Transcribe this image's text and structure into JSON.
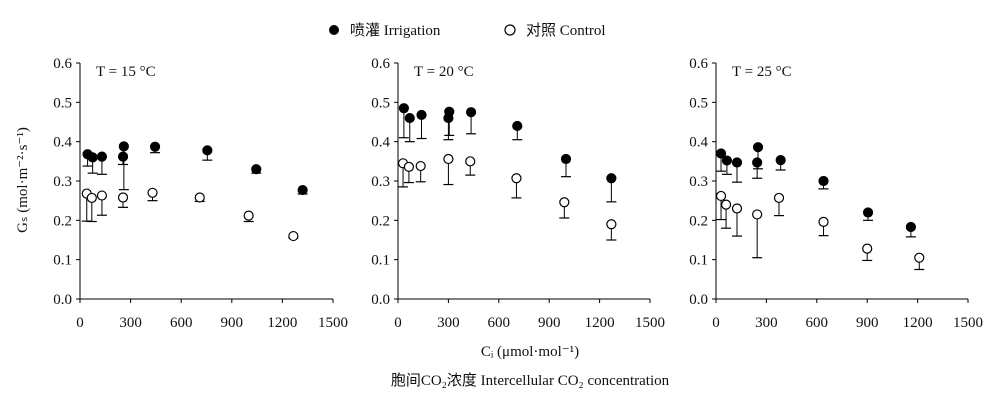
{
  "legend": {
    "irrigation": "喷灌 Irrigation",
    "control": "对照 Control"
  },
  "axes": {
    "ylabel": "Gₛ (mol·m⁻²·s⁻¹)",
    "xlabel": "Cᵢ (μmol·mol⁻¹)",
    "xlabel_bottom": "胞间CO₂浓度 Intercellular CO₂ concentration"
  },
  "chart_data": [
    {
      "type": "scatter",
      "title": "T = 15 °C",
      "xlabel": "Cᵢ (μmol·mol⁻¹)",
      "ylabel": "Gₛ (mol·m⁻²·s⁻¹)",
      "xlim": [
        0,
        1500
      ],
      "ylim": [
        0,
        0.6
      ],
      "xticks": [
        0,
        300,
        600,
        900,
        1200,
        1500
      ],
      "yticks": [
        0.0,
        0.1,
        0.2,
        0.3,
        0.4,
        0.5,
        0.6
      ],
      "series": [
        {
          "name": "喷灌 Irrigation",
          "marker": "filled-circle",
          "points": [
            {
              "x": 45,
              "y": 0.368,
              "err": 0.03
            },
            {
              "x": 75,
              "y": 0.36,
              "err": 0.04
            },
            {
              "x": 130,
              "y": 0.362,
              "err": 0.045
            },
            {
              "x": 260,
              "y": 0.388,
              "err": 0.11
            },
            {
              "x": 255,
              "y": 0.362,
              "err": 0.02
            },
            {
              "x": 445,
              "y": 0.387,
              "err": 0.015
            },
            {
              "x": 755,
              "y": 0.378,
              "err": 0.025
            },
            {
              "x": 1045,
              "y": 0.33,
              "err": 0.01
            },
            {
              "x": 1320,
              "y": 0.277,
              "err": 0.01
            }
          ]
        },
        {
          "name": "对照 Control",
          "marker": "open-circle",
          "points": [
            {
              "x": 40,
              "y": 0.268,
              "err": 0.07
            },
            {
              "x": 70,
              "y": 0.257,
              "err": 0.06
            },
            {
              "x": 130,
              "y": 0.263,
              "err": 0.05
            },
            {
              "x": 255,
              "y": 0.258,
              "err": 0.025
            },
            {
              "x": 430,
              "y": 0.27,
              "err": 0.02
            },
            {
              "x": 710,
              "y": 0.258,
              "err": 0.01
            },
            {
              "x": 1000,
              "y": 0.212,
              "err": 0.015
            },
            {
              "x": 1265,
              "y": 0.16,
              "err": 0.005
            }
          ]
        }
      ]
    },
    {
      "type": "scatter",
      "title": "T = 20 °C",
      "xlabel": "Cᵢ (μmol·mol⁻¹)",
      "ylabel": "Gₛ (mol·m⁻²·s⁻¹)",
      "xlim": [
        0,
        1500
      ],
      "ylim": [
        0,
        0.6
      ],
      "xticks": [
        0,
        300,
        600,
        900,
        1200,
        1500
      ],
      "yticks": [
        0.0,
        0.1,
        0.2,
        0.3,
        0.4,
        0.5,
        0.6
      ],
      "series": [
        {
          "name": "喷灌 Irrigation",
          "marker": "filled-circle",
          "points": [
            {
              "x": 35,
              "y": 0.485,
              "err": 0.075
            },
            {
              "x": 70,
              "y": 0.46,
              "err": 0.06
            },
            {
              "x": 140,
              "y": 0.468,
              "err": 0.06
            },
            {
              "x": 305,
              "y": 0.476,
              "err": 0.06
            },
            {
              "x": 300,
              "y": 0.46,
              "err": 0.055
            },
            {
              "x": 435,
              "y": 0.475,
              "err": 0.055
            },
            {
              "x": 710,
              "y": 0.44,
              "err": 0.035
            },
            {
              "x": 1000,
              "y": 0.356,
              "err": 0.045
            },
            {
              "x": 1270,
              "y": 0.307,
              "err": 0.06
            }
          ]
        },
        {
          "name": "对照 Control",
          "marker": "open-circle",
          "points": [
            {
              "x": 30,
              "y": 0.345,
              "err": 0.06
            },
            {
              "x": 65,
              "y": 0.336,
              "err": 0.04
            },
            {
              "x": 135,
              "y": 0.338,
              "err": 0.04
            },
            {
              "x": 300,
              "y": 0.356,
              "err": 0.065
            },
            {
              "x": 430,
              "y": 0.35,
              "err": 0.035
            },
            {
              "x": 705,
              "y": 0.307,
              "err": 0.05
            },
            {
              "x": 990,
              "y": 0.246,
              "err": 0.04
            },
            {
              "x": 1270,
              "y": 0.19,
              "err": 0.04
            }
          ]
        }
      ]
    },
    {
      "type": "scatter",
      "title": "T = 25 °C",
      "xlabel": "Cᵢ (μmol·mol⁻¹)",
      "ylabel": "Gₛ (mol·m⁻²·s⁻¹)",
      "xlim": [
        0,
        1500
      ],
      "ylim": [
        0,
        0.6
      ],
      "xticks": [
        0,
        300,
        600,
        900,
        1200,
        1500
      ],
      "yticks": [
        0.0,
        0.1,
        0.2,
        0.3,
        0.4,
        0.5,
        0.6
      ],
      "series": [
        {
          "name": "喷灌 Irrigation",
          "marker": "filled-circle",
          "points": [
            {
              "x": 30,
              "y": 0.37,
              "err": 0.045
            },
            {
              "x": 65,
              "y": 0.352,
              "err": 0.035
            },
            {
              "x": 125,
              "y": 0.347,
              "err": 0.05
            },
            {
              "x": 250,
              "y": 0.386,
              "err": 0.055
            },
            {
              "x": 245,
              "y": 0.347,
              "err": 0.04
            },
            {
              "x": 385,
              "y": 0.353,
              "err": 0.025
            },
            {
              "x": 640,
              "y": 0.3,
              "err": 0.02
            },
            {
              "x": 905,
              "y": 0.22,
              "err": 0.02
            },
            {
              "x": 1160,
              "y": 0.183,
              "err": 0.025
            }
          ]
        },
        {
          "name": "对照 Control",
          "marker": "open-circle",
          "points": [
            {
              "x": 30,
              "y": 0.262,
              "err": 0.06
            },
            {
              "x": 60,
              "y": 0.24,
              "err": 0.06
            },
            {
              "x": 125,
              "y": 0.23,
              "err": 0.07
            },
            {
              "x": 245,
              "y": 0.215,
              "err": 0.11
            },
            {
              "x": 375,
              "y": 0.257,
              "err": 0.045
            },
            {
              "x": 640,
              "y": 0.196,
              "err": 0.035
            },
            {
              "x": 900,
              "y": 0.128,
              "err": 0.03
            },
            {
              "x": 1210,
              "y": 0.105,
              "err": 0.03
            }
          ]
        }
      ]
    }
  ]
}
